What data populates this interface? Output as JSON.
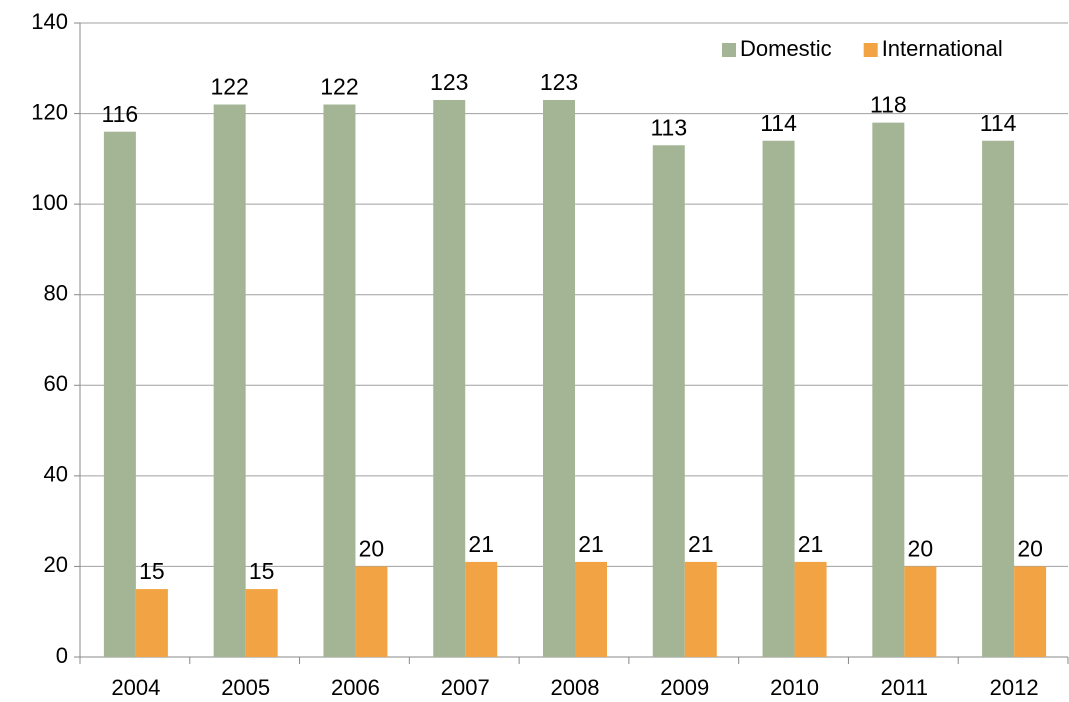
{
  "chart_data": {
    "type": "bar",
    "categories": [
      "2004",
      "2005",
      "2006",
      "2007",
      "2008",
      "2009",
      "2010",
      "2011",
      "2012"
    ],
    "series": [
      {
        "name": "Domestic",
        "color": "#a3b595",
        "values": [
          116,
          122,
          122,
          123,
          123,
          113,
          114,
          118,
          114
        ]
      },
      {
        "name": "International",
        "color": "#f2a444",
        "values": [
          15,
          15,
          20,
          21,
          21,
          21,
          21,
          20,
          20
        ]
      }
    ],
    "ylim": [
      0,
      140
    ],
    "yticks": [
      0,
      20,
      40,
      60,
      80,
      100,
      120,
      140
    ],
    "grid": true,
    "legend": "upper-right"
  }
}
